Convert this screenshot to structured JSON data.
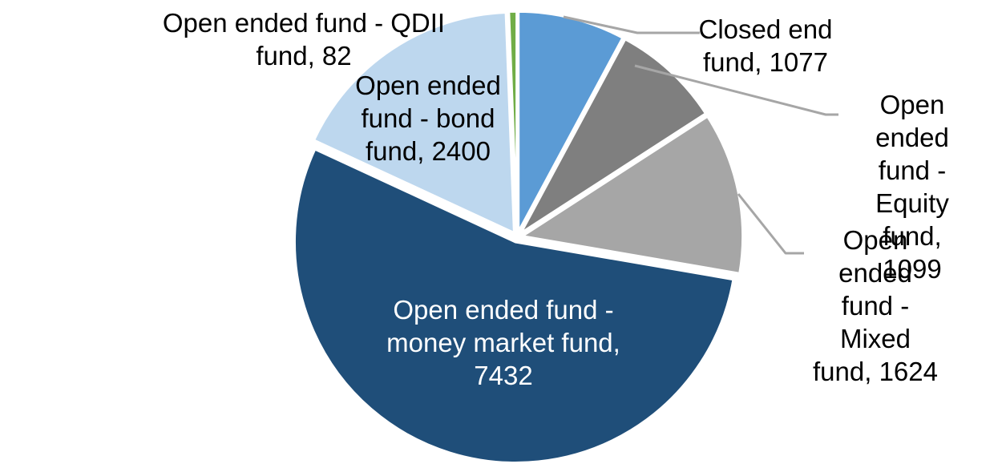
{
  "chart_data": {
    "type": "pie",
    "start_angle_deg": 0,
    "direction": "clockwise",
    "legend": "none",
    "background": "#FFFFFF",
    "slice_border_color": "#FFFFFF",
    "leader_line_color": "#A6A6A6",
    "label_text_color_outside": "#000000",
    "label_text_color_on_dark_slice": "#FFFFFF",
    "slices": [
      {
        "name": "Closed end fund",
        "value": 1077,
        "color": "#5B9BD5",
        "label_text": "Closed end\nfund, 1077",
        "label_placement": "outside-right",
        "has_leader_line": true
      },
      {
        "name": "Open ended fund - Equity fund",
        "value": 1099,
        "color": "#7F7F7F",
        "label_text": "Open ended\nfund - Equity\nfund, 1099",
        "label_placement": "outside-right",
        "has_leader_line": true
      },
      {
        "name": "Open ended fund - Mixed fund",
        "value": 1624,
        "color": "#A6A6A6",
        "label_text": "Open ended\nfund - Mixed\nfund, 1624",
        "label_placement": "outside-right",
        "has_leader_line": true
      },
      {
        "name": "Open ended fund - money market fund",
        "value": 7432,
        "color": "#1F4E79",
        "label_text": "Open ended fund -\nmoney market fund,\n7432",
        "label_placement": "inside",
        "has_leader_line": false
      },
      {
        "name": "Open ended fund - bond fund",
        "value": 2400,
        "color": "#BDD7EE",
        "label_text": "Open ended\nfund - bond\nfund, 2400",
        "label_placement": "inside",
        "has_leader_line": false
      },
      {
        "name": "Open ended fund - QDII fund",
        "value": 82,
        "color": "#70AD47",
        "label_text": "Open ended fund - QDII\nfund, 82",
        "label_placement": "outside-left",
        "has_leader_line": false
      }
    ]
  }
}
